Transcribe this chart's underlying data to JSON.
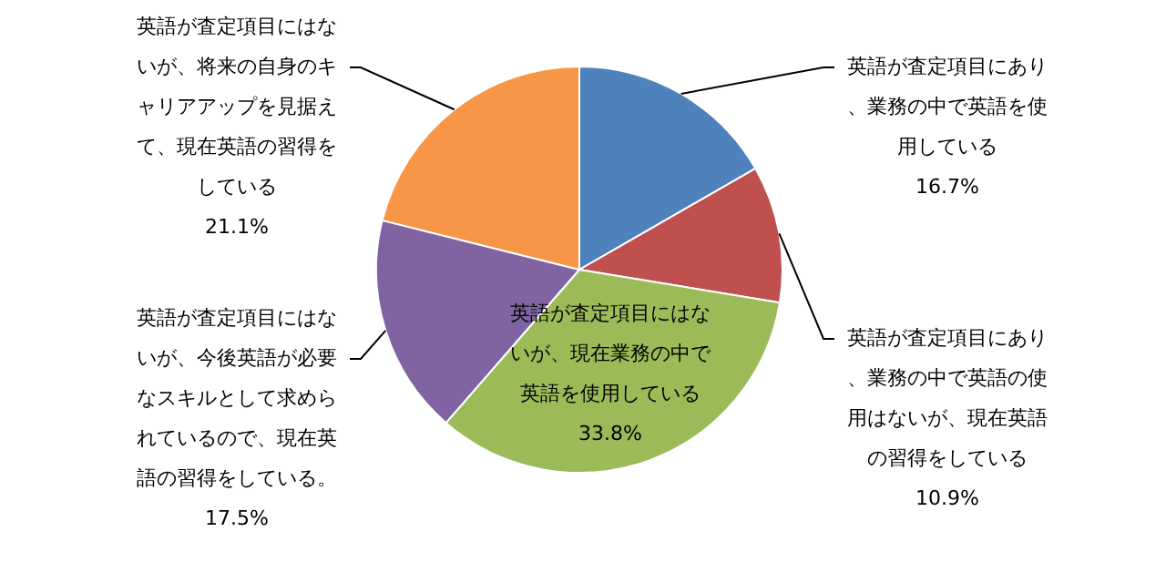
{
  "chart_data": {
    "type": "pie",
    "categories": [
      "英語が査定項目にあり、業務の中で英語を使用している",
      "英語が査定項目にあり、業務の中で英語の使用はないが、現在英語の習得をしている",
      "英語が査定項目にはないが、現在業務の中で英語を使用している",
      "英語が査定項目にはないが、今後英語が必要なスキルとして求められているので、現在英語の習得をしている。",
      "英語が査定項目にはないが、将来の自身のキャリアアップを見据えて、現在英語の習得をしている"
    ],
    "values": [
      16.7,
      10.9,
      33.8,
      17.5,
      21.1
    ],
    "colors": [
      "#4f81bd",
      "#c0504d",
      "#9bbb59",
      "#8064a2",
      "#f79646"
    ],
    "value_labels": [
      "16.7%",
      "10.9%",
      "33.8%",
      "17.5%",
      "21.1%"
    ],
    "legend": false
  }
}
